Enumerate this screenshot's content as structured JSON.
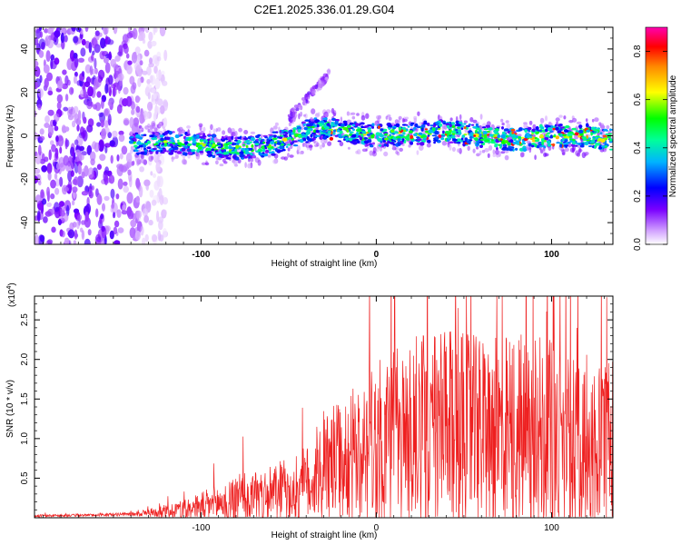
{
  "title": "C2E1.2025.336.01.29.G04",
  "chart_data": [
    {
      "type": "heatmap",
      "xlabel": "Height of straight line (km)",
      "ylabel": "Frequency (Hz)",
      "xlim": [
        -195,
        135
      ],
      "ylim": [
        -50,
        50
      ],
      "xticks": [
        -100,
        0,
        100
      ],
      "yticks": [
        -40,
        -20,
        0,
        20,
        40
      ],
      "grid": false,
      "colorbar": {
        "label": "Normalized spectral amplitude",
        "range": [
          0.0,
          0.9
        ],
        "ticks": [
          0.0,
          0.2,
          0.4,
          0.6,
          0.8
        ],
        "colors": [
          "#ffffff",
          "#c080ff",
          "#6a00ff",
          "#0000ff",
          "#00c0ff",
          "#00ff80",
          "#ffff00",
          "#ff8000",
          "#ff0000",
          "#ff00c0"
        ]
      },
      "regions": [
        {
          "name": "noise",
          "x_range": [
            -195,
            -120
          ],
          "freq_range": [
            -50,
            50
          ],
          "amplitude": 0.08
        },
        {
          "name": "descending-branch",
          "x_range": [
            -50,
            -25
          ],
          "freq_start": 8,
          "freq_end": 30,
          "amplitude": 0.05
        },
        {
          "name": "main-band",
          "x_range": [
            -140,
            135
          ],
          "center_freq": [
            [
              -140,
              -4
            ],
            [
              -120,
              -3
            ],
            [
              -100,
              -4
            ],
            [
              -80,
              -6
            ],
            [
              -60,
              -4
            ],
            [
              -40,
              2
            ],
            [
              -30,
              4
            ],
            [
              -20,
              2
            ],
            [
              0,
              0
            ],
            [
              20,
              1
            ],
            [
              40,
              2
            ],
            [
              60,
              0
            ],
            [
              80,
              -2
            ],
            [
              100,
              0
            ],
            [
              120,
              0
            ],
            [
              135,
              -2
            ]
          ],
          "peak_amplitude": 0.9
        }
      ]
    },
    {
      "type": "line",
      "xlabel": "Height of straight line (km)",
      "ylabel": "SNR (10 * v/v)",
      "y_exponent_label": "(x10",
      "y_exponent_power": "4",
      "y_exponent_close": ")",
      "xlim": [
        -195,
        135
      ],
      "ylim": [
        0,
        2.8
      ],
      "xticks": [
        -100,
        0,
        100
      ],
      "yticks": [
        0.5,
        1.0,
        1.5,
        2.0,
        2.5
      ],
      "ytick_labels": [
        "0.5",
        "1.0",
        "1.5",
        "2.0",
        "2.5"
      ],
      "color": "#ee2020",
      "grid": false,
      "envelope": [
        {
          "x": -195,
          "base": 0.02,
          "amp": 0.02
        },
        {
          "x": -160,
          "base": 0.03,
          "amp": 0.02
        },
        {
          "x": -140,
          "base": 0.04,
          "amp": 0.03
        },
        {
          "x": -120,
          "base": 0.06,
          "amp": 0.1
        },
        {
          "x": -100,
          "base": 0.1,
          "amp": 0.22
        },
        {
          "x": -80,
          "base": 0.15,
          "amp": 0.4
        },
        {
          "x": -60,
          "base": 0.2,
          "amp": 0.45
        },
        {
          "x": -40,
          "base": 0.3,
          "amp": 0.6
        },
        {
          "x": -25,
          "base": 0.5,
          "amp": 0.9
        },
        {
          "x": -10,
          "base": 0.6,
          "amp": 1.1
        },
        {
          "x": 10,
          "base": 0.7,
          "amp": 1.5
        },
        {
          "x": 30,
          "base": 0.8,
          "amp": 1.6
        },
        {
          "x": 60,
          "base": 0.75,
          "amp": 1.55
        },
        {
          "x": 90,
          "base": 0.7,
          "amp": 1.7
        },
        {
          "x": 110,
          "base": 0.6,
          "amp": 1.5
        },
        {
          "x": 135,
          "base": 0.6,
          "amp": 1.4
        }
      ]
    }
  ]
}
